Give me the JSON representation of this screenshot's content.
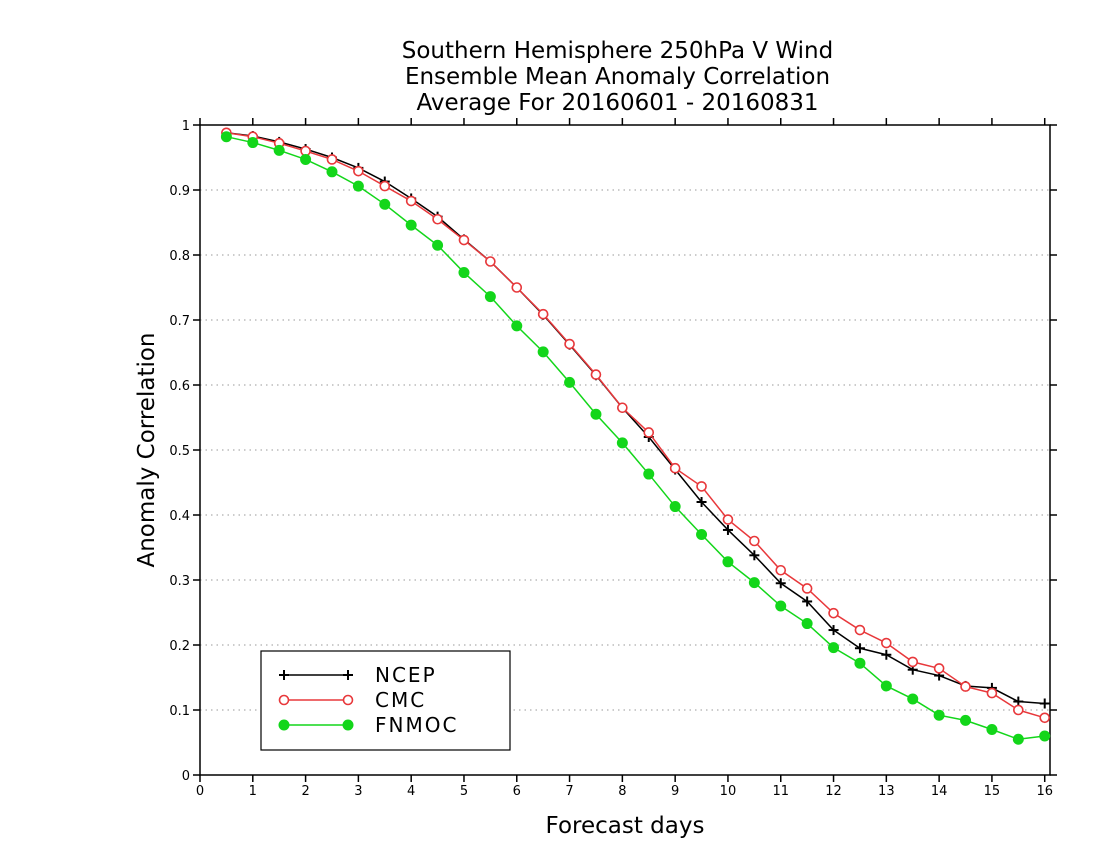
{
  "chart_data": {
    "type": "line",
    "title": [
      "Southern Hemisphere 250hPa V Wind",
      "Ensemble Mean Anomaly Correlation",
      "Average For 20160601 - 20160831"
    ],
    "xlabel": "Forecast days",
    "ylabel": "Anomaly Correlation",
    "xlim": [
      0,
      16.1
    ],
    "ylim": [
      0,
      1
    ],
    "xticks": [
      "0",
      "1",
      "2",
      "3",
      "4",
      "5",
      "6",
      "7",
      "8",
      "9",
      "10",
      "11",
      "12",
      "13",
      "14",
      "15",
      "16"
    ],
    "yticks": [
      "0",
      "0.1",
      "0.2",
      "0.3",
      "0.4",
      "0.5",
      "0.6",
      "0.7",
      "0.8",
      "0.9",
      "1"
    ],
    "grid": "horizontal dotted",
    "legend_position": "bottom-left",
    "x": [
      0.5,
      1,
      1.5,
      2,
      2.5,
      3,
      3.5,
      4,
      4.5,
      5,
      5.5,
      6,
      6.5,
      7,
      7.5,
      8,
      8.5,
      9,
      9.5,
      10,
      10.5,
      11,
      11.5,
      12,
      12.5,
      13,
      13.5,
      14,
      14.5,
      15,
      15.5,
      16
    ],
    "series": [
      {
        "name": "NCEP",
        "color": "#000000",
        "marker": "plus",
        "values": [
          0.988,
          0.983,
          0.974,
          0.963,
          0.95,
          0.934,
          0.913,
          0.887,
          0.859,
          0.824,
          0.79,
          0.75,
          0.708,
          0.662,
          0.615,
          0.565,
          0.52,
          0.47,
          0.42,
          0.377,
          0.338,
          0.295,
          0.267,
          0.223,
          0.195,
          0.185,
          0.162,
          0.153,
          0.137,
          0.134,
          0.113,
          0.11
        ]
      },
      {
        "name": "CMC",
        "color": "#e8383b",
        "marker": "open-circle",
        "values": [
          0.988,
          0.982,
          0.972,
          0.96,
          0.947,
          0.929,
          0.906,
          0.883,
          0.855,
          0.823,
          0.79,
          0.75,
          0.709,
          0.663,
          0.616,
          0.565,
          0.527,
          0.472,
          0.444,
          0.393,
          0.36,
          0.315,
          0.287,
          0.249,
          0.223,
          0.203,
          0.174,
          0.164,
          0.136,
          0.126,
          0.1,
          0.088
        ]
      },
      {
        "name": "FNMOC",
        "color": "#13d61a",
        "marker": "filled-circle",
        "values": [
          0.982,
          0.973,
          0.961,
          0.947,
          0.928,
          0.906,
          0.878,
          0.846,
          0.815,
          0.773,
          0.736,
          0.691,
          0.651,
          0.604,
          0.555,
          0.511,
          0.463,
          0.413,
          0.37,
          0.328,
          0.296,
          0.26,
          0.233,
          0.196,
          0.172,
          0.137,
          0.117,
          0.092,
          0.084,
          0.07,
          0.055,
          0.06
        ]
      }
    ]
  }
}
